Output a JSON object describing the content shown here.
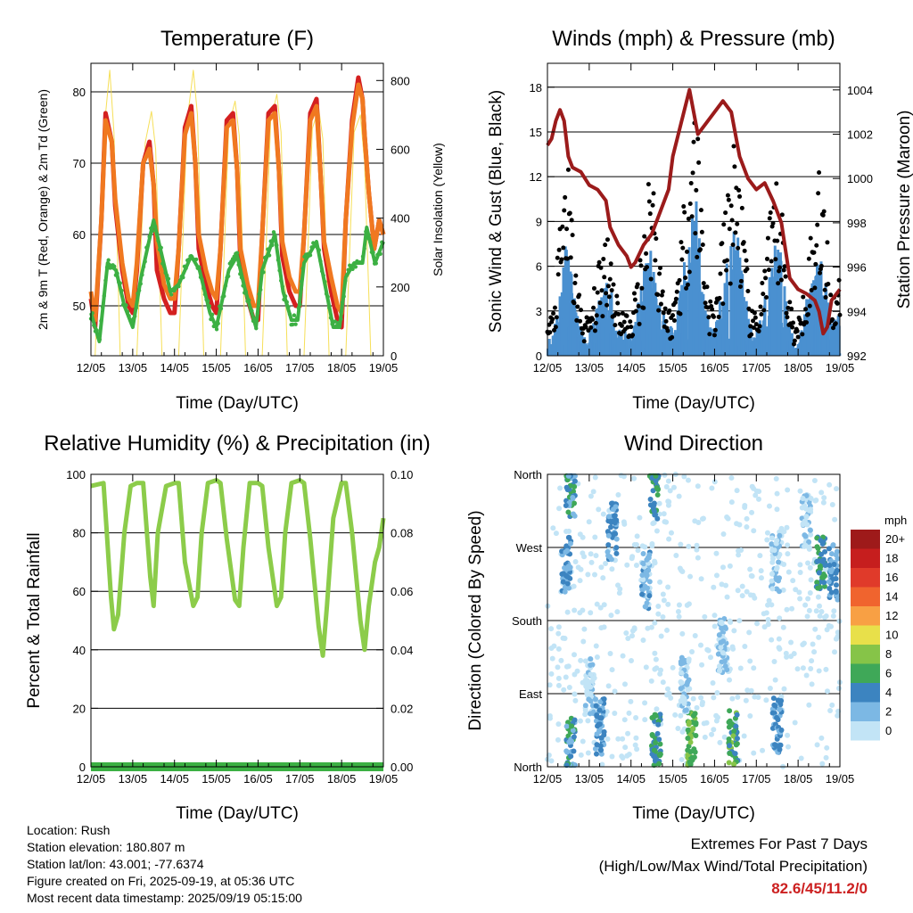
{
  "chart_data": [
    {
      "type": "line",
      "title": "Temperature (F)",
      "xlabel": "Time (Day/UTC)",
      "ylabel": "2m & 9m T (Red, Orange) & 2m Td (Green)",
      "y2label": "Solar Insolation (Yellow)",
      "x_ticks": [
        "12/05",
        "13/05",
        "14/05",
        "15/05",
        "16/05",
        "17/05",
        "18/05",
        "19/05"
      ],
      "ylim": [
        43,
        84
      ],
      "y_ticks": [
        50,
        60,
        70,
        80
      ],
      "y2lim": [
        0,
        850
      ],
      "y2_ticks": [
        0,
        200,
        400,
        600,
        800
      ],
      "grid": true,
      "series": [
        {
          "name": "2m T",
          "color": "#d42020",
          "x": [
            0.0,
            0.1,
            0.25,
            0.35,
            0.5,
            0.58,
            0.75,
            0.9,
            1.0,
            1.1,
            1.25,
            1.4,
            1.5,
            1.58,
            1.75,
            1.9,
            2.0,
            2.1,
            2.25,
            2.4,
            2.5,
            2.58,
            2.75,
            2.9,
            3.0,
            3.1,
            3.25,
            3.4,
            3.5,
            3.58,
            3.75,
            3.9,
            4.0,
            4.1,
            4.25,
            4.4,
            4.5,
            4.58,
            4.75,
            4.9,
            5.0,
            5.1,
            5.25,
            5.4,
            5.5,
            5.58,
            5.75,
            5.9,
            6.0,
            6.1,
            6.25,
            6.4,
            6.5,
            6.55,
            6.65,
            6.78,
            6.9,
            7.0
          ],
          "y": [
            51,
            47,
            62,
            77,
            73,
            64,
            55,
            50,
            49,
            55,
            70,
            73,
            67,
            55,
            51,
            49,
            49,
            58,
            75,
            78,
            70,
            58,
            53,
            50,
            49,
            58,
            76,
            77,
            69,
            56,
            51,
            48,
            48,
            60,
            77,
            78,
            69,
            57,
            52,
            50,
            50,
            60,
            77,
            79,
            68,
            58,
            52,
            48,
            47,
            62,
            76,
            82,
            79,
            74,
            66,
            58,
            62,
            60
          ]
        },
        {
          "name": "9m T",
          "color": "#f07820",
          "x": [
            0.0,
            0.1,
            0.25,
            0.35,
            0.5,
            0.58,
            0.75,
            0.9,
            1.0,
            1.1,
            1.25,
            1.4,
            1.5,
            1.58,
            1.75,
            1.9,
            2.0,
            2.1,
            2.25,
            2.4,
            2.5,
            2.58,
            2.75,
            2.9,
            3.0,
            3.1,
            3.25,
            3.4,
            3.5,
            3.58,
            3.75,
            3.9,
            4.0,
            4.1,
            4.25,
            4.4,
            4.5,
            4.58,
            4.75,
            4.9,
            5.0,
            5.1,
            5.25,
            5.4,
            5.5,
            5.58,
            5.75,
            5.9,
            6.0,
            6.1,
            6.25,
            6.4,
            6.5,
            6.55,
            6.65,
            6.78,
            6.9,
            7.0
          ],
          "y": [
            52,
            48,
            62,
            76,
            73,
            65,
            56,
            51,
            50,
            56,
            70,
            72,
            67,
            59,
            53,
            51,
            51,
            58,
            74,
            77,
            70,
            60,
            55,
            52,
            51,
            58,
            75,
            76,
            69,
            58,
            53,
            50,
            50,
            60,
            76,
            77,
            69,
            59,
            54,
            52,
            52,
            60,
            76,
            78,
            68,
            59,
            54,
            50,
            49,
            62,
            75,
            81,
            79,
            74,
            66,
            58,
            62,
            60
          ]
        },
        {
          "name": "2m Td",
          "color": "#3cb043",
          "x": [
            0.0,
            0.2,
            0.4,
            0.6,
            0.8,
            1.0,
            1.2,
            1.5,
            1.7,
            1.9,
            2.1,
            2.4,
            2.6,
            2.85,
            3.0,
            3.3,
            3.5,
            3.7,
            3.95,
            4.1,
            4.4,
            4.6,
            4.8,
            4.95,
            5.1,
            5.4,
            5.6,
            5.8,
            5.95,
            6.1,
            6.3,
            6.5,
            6.6,
            6.8,
            7.0
          ],
          "y": [
            49,
            45,
            56,
            55,
            50,
            47,
            54,
            62,
            57,
            52,
            53,
            57,
            55,
            49,
            47,
            55,
            57,
            52,
            47,
            55,
            60,
            52,
            48,
            48,
            56,
            59,
            53,
            47,
            47,
            54,
            56,
            56,
            61,
            56,
            59
          ]
        },
        {
          "name": "Solar Insolation",
          "color": "#f5dc46",
          "axis": "right",
          "x": [
            0.1,
            0.3,
            0.45,
            0.55,
            0.7,
            1.1,
            1.3,
            1.45,
            1.55,
            1.7,
            2.1,
            2.3,
            2.45,
            2.55,
            2.7,
            3.1,
            3.3,
            3.45,
            3.55,
            3.7,
            4.1,
            4.3,
            4.45,
            4.55,
            4.7,
            5.1,
            5.3,
            5.45,
            5.55,
            5.7,
            6.1,
            6.3,
            6.45,
            6.55,
            6.7
          ],
          "y": [
            0,
            640,
            830,
            650,
            0,
            0,
            620,
            710,
            600,
            0,
            0,
            680,
            830,
            700,
            0,
            0,
            670,
            740,
            640,
            0,
            0,
            680,
            760,
            650,
            0,
            0,
            660,
            720,
            630,
            0,
            0,
            650,
            700,
            560,
            0
          ]
        }
      ]
    },
    {
      "type": "scatter",
      "title": "Winds (mph) & Pressure (mb)",
      "xlabel": "Time (Day/UTC)",
      "ylabel": "Sonic Wind & Gust (Blue, Black)",
      "y2label": "Station Pressure (Maroon)",
      "x_ticks": [
        "12/05",
        "13/05",
        "14/05",
        "15/05",
        "16/05",
        "17/05",
        "18/05",
        "19/05"
      ],
      "ylim": [
        0,
        19.6
      ],
      "y_ticks": [
        0,
        3,
        6,
        9,
        12,
        15,
        18
      ],
      "y2lim": [
        992,
        1005.2
      ],
      "y2_ticks": [
        992,
        994,
        996,
        998,
        1000,
        1002,
        1004
      ],
      "grid": true,
      "wind_envelope": {
        "x": [
          0.0,
          0.15,
          0.3,
          0.45,
          0.55,
          0.7,
          0.85,
          1.0,
          1.25,
          1.45,
          1.6,
          1.75,
          2.0,
          2.2,
          2.4,
          2.5,
          2.6,
          2.85,
          3.0,
          3.2,
          3.4,
          3.55,
          3.7,
          3.85,
          4.0,
          4.2,
          4.4,
          4.55,
          4.7,
          4.85,
          5.0,
          5.2,
          5.45,
          5.6,
          5.75,
          5.9,
          6.0,
          6.2,
          6.4,
          6.5,
          6.6,
          6.8,
          7.0
        ],
        "wind": [
          1,
          2,
          5,
          8,
          6,
          3,
          1.5,
          1.5,
          4,
          6,
          3,
          2,
          1.5,
          4,
          7,
          8,
          5,
          2,
          2,
          5,
          9,
          11,
          6,
          2.5,
          2,
          5,
          8,
          9,
          5,
          2,
          1.5,
          4,
          8,
          7,
          3,
          1,
          1,
          4,
          6,
          9,
          6,
          2.5,
          3
        ],
        "gust": [
          2,
          3,
          8,
          13,
          10,
          5,
          2.5,
          2.5,
          6,
          9,
          5,
          3,
          2.5,
          6,
          11,
          14,
          9,
          3,
          3,
          8,
          14,
          17,
          10,
          4,
          3,
          8,
          13,
          14,
          8,
          3,
          2.5,
          6,
          11,
          10,
          5,
          2,
          2,
          6,
          9,
          15,
          10,
          4,
          5
        ]
      },
      "series": [
        {
          "name": "Station Pressure",
          "color": "#9b1b1b",
          "axis": "right",
          "x": [
            0.0,
            0.1,
            0.2,
            0.3,
            0.4,
            0.5,
            0.6,
            0.8,
            1.0,
            1.2,
            1.4,
            1.5,
            1.7,
            1.9,
            2.0,
            2.1,
            2.3,
            2.5,
            2.7,
            2.9,
            3.0,
            3.2,
            3.4,
            3.6,
            3.8,
            4.0,
            4.2,
            4.4,
            4.6,
            4.8,
            5.0,
            5.2,
            5.4,
            5.6,
            5.8,
            6.0,
            6.2,
            6.4,
            6.5,
            6.6,
            6.7,
            6.8,
            7.0
          ],
          "y": [
            1001.5,
            1001.8,
            1002.6,
            1003.1,
            1002.6,
            1001.0,
            1000.5,
            1000.3,
            999.7,
            999.5,
            999.0,
            997.8,
            997.0,
            996.5,
            996.0,
            996.2,
            997.0,
            997.5,
            998.5,
            999.5,
            1001.0,
            1002.5,
            1004.0,
            1002.0,
            1002.5,
            1003.0,
            1003.5,
            1003.0,
            1001.0,
            1000.0,
            999.5,
            999.8,
            999.0,
            998.0,
            995.5,
            995.0,
            994.8,
            994.5,
            994.0,
            993.0,
            993.3,
            994.5,
            995.0
          ]
        }
      ]
    },
    {
      "type": "line",
      "title": "Relative Humidity (%) & Precipitation (in)",
      "xlabel": "Time (Day/UTC)",
      "ylabel": "Percent & Total Rainfall",
      "x_ticks": [
        "12/05",
        "13/05",
        "14/05",
        "15/05",
        "16/05",
        "17/05",
        "18/05",
        "19/05"
      ],
      "ylim": [
        0,
        100
      ],
      "y_ticks": [
        0,
        20,
        40,
        60,
        80,
        100
      ],
      "y2lim": [
        0,
        0.1
      ],
      "y2_ticks": [
        "0.00",
        "0.02",
        "0.04",
        "0.06",
        "0.08",
        "0.10"
      ],
      "grid": true,
      "series": [
        {
          "name": "Relative Humidity",
          "color": "#8ccc4a",
          "x": [
            0.0,
            0.3,
            0.38,
            0.48,
            0.55,
            0.65,
            0.8,
            0.95,
            1.1,
            1.25,
            1.42,
            1.5,
            1.6,
            1.8,
            2.0,
            2.1,
            2.25,
            2.45,
            2.55,
            2.65,
            2.8,
            3.0,
            3.1,
            3.25,
            3.45,
            3.55,
            3.65,
            3.8,
            4.0,
            4.1,
            4.25,
            4.45,
            4.55,
            4.65,
            4.8,
            5.0,
            5.1,
            5.25,
            5.45,
            5.55,
            5.65,
            5.8,
            6.0,
            6.1,
            6.25,
            6.45,
            6.55,
            6.65,
            6.8,
            6.9,
            7.0
          ],
          "y": [
            96,
            97,
            80,
            58,
            47,
            52,
            80,
            96,
            97,
            97,
            65,
            55,
            80,
            96,
            97,
            97,
            70,
            55,
            58,
            80,
            97,
            98,
            97,
            78,
            57,
            55,
            75,
            97,
            97,
            96,
            75,
            55,
            58,
            80,
            97,
            98,
            97,
            78,
            48,
            38,
            55,
            85,
            97,
            97,
            80,
            50,
            40,
            55,
            70,
            75,
            85
          ]
        },
        {
          "name": "Total Precipitation",
          "color": "#3cb043",
          "axis": "right",
          "x": [
            0.0,
            7.0
          ],
          "y": [
            0,
            0
          ]
        }
      ]
    },
    {
      "type": "scatter",
      "title": "Wind Direction",
      "xlabel": "Time (Day/UTC)",
      "ylabel": "Direction (Colored By Speed)",
      "x_ticks": [
        "12/05",
        "13/05",
        "14/05",
        "15/05",
        "16/05",
        "17/05",
        "18/05",
        "19/05"
      ],
      "y_ticks": [
        "North",
        "East",
        "South",
        "West",
        "North"
      ],
      "ylim": [
        0,
        360
      ],
      "grid": true,
      "legend": {
        "title": "mph",
        "placement": "right",
        "labels": [
          "20+",
          "18",
          "16",
          "14",
          "12",
          "10",
          "8",
          "6",
          "4",
          "2",
          "0"
        ],
        "colors": [
          "#9e1a1a",
          "#c61e1e",
          "#e03a2a",
          "#f0642e",
          "#f8a044",
          "#e8e04a",
          "#86c448",
          "#3fa858",
          "#3c84c0",
          "#7cb8e4",
          "#c2e4f6"
        ]
      },
      "clusters": [
        {
          "x": 0.55,
          "dir": 25,
          "speed": 5
        },
        {
          "x": 0.45,
          "dir": 250,
          "speed": 4
        },
        {
          "x": 0.55,
          "dir": 340,
          "speed": 5
        },
        {
          "x": 1.0,
          "dir": 100,
          "speed": 2
        },
        {
          "x": 1.25,
          "dir": 50,
          "speed": 4
        },
        {
          "x": 1.55,
          "dir": 290,
          "speed": 4
        },
        {
          "x": 2.35,
          "dir": 230,
          "speed": 3
        },
        {
          "x": 2.55,
          "dir": 340,
          "speed": 6
        },
        {
          "x": 2.6,
          "dir": 30,
          "speed": 6
        },
        {
          "x": 3.45,
          "dir": 35,
          "speed": 8
        },
        {
          "x": 3.3,
          "dir": 100,
          "speed": 2
        },
        {
          "x": 4.45,
          "dir": 35,
          "speed": 7
        },
        {
          "x": 4.2,
          "dir": 150,
          "speed": 2
        },
        {
          "x": 5.5,
          "dir": 50,
          "speed": 4
        },
        {
          "x": 5.45,
          "dir": 250,
          "speed": 2
        },
        {
          "x": 6.55,
          "dir": 250,
          "speed": 6
        },
        {
          "x": 6.85,
          "dir": 240,
          "speed": 4
        },
        {
          "x": 6.2,
          "dir": 300,
          "speed": 2
        }
      ]
    }
  ],
  "footer": {
    "location": "Location: Rush",
    "elevation": "Station elevation: 180.807 m",
    "latlon": "Station lat/lon: 43.001; -77.6374",
    "created": "Figure created on Fri, 2025-09-19, at 05:36 UTC",
    "recent": "Most recent data timestamp: 2025/09/19 05:15:00"
  },
  "extremes": {
    "line1": "Extremes For Past 7 Days",
    "line2": "(High/Low/Max Wind/Total Precipitation)",
    "value": "82.6/45/11.2/0"
  }
}
